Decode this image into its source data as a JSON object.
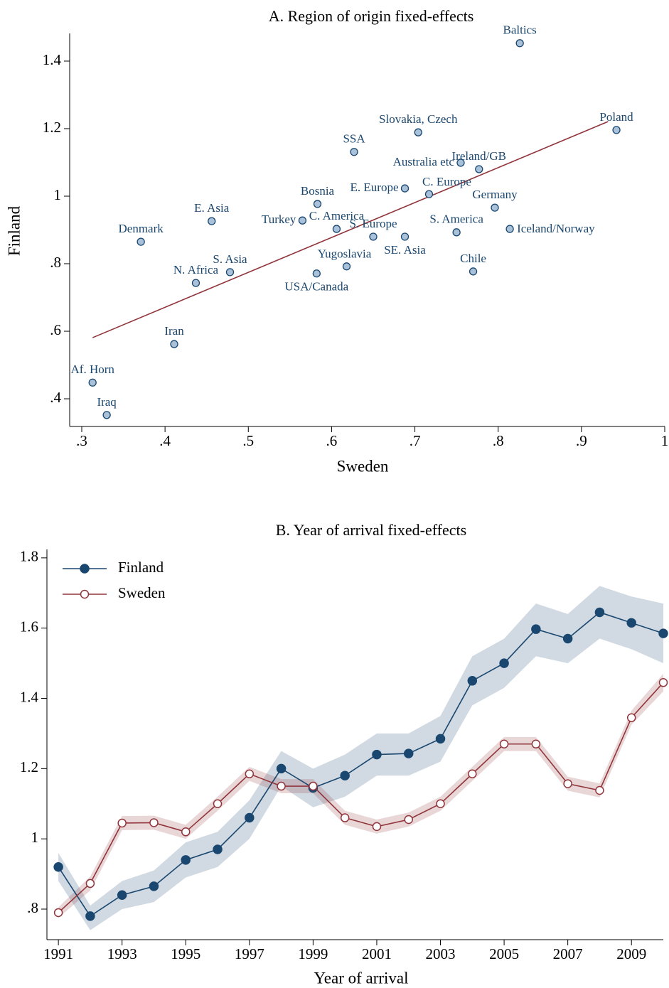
{
  "chart_data": [
    {
      "type": "scatter",
      "title": "A. Region of origin fixed-effects",
      "x_label": "Sweden",
      "y_label": "Finland",
      "point_color": "#a9c1d9",
      "edge_color": "#1a476f",
      "label_color": "#1a476f",
      "labels": [
        "Baltics",
        "Poland",
        "Slovakia, Czech",
        "SSA",
        "Australia etc",
        "Ireland/GB",
        "E. Europe",
        "C. Europe",
        "Bosnia",
        "Germany",
        "E. Asia",
        "Turkey",
        "C. America",
        "Iceland/Norway",
        "S. Europe",
        "SE. Asia",
        "S. America",
        "Denmark",
        "Yugoslavia",
        "Chile",
        "S. Asia",
        "USA/Canada",
        "N. Africa",
        "Iran",
        "Af. Horn",
        "Iraq"
      ],
      "x": [
        0.826,
        0.942,
        0.704,
        0.627,
        0.755,
        0.777,
        0.688,
        0.717,
        0.583,
        0.796,
        0.456,
        0.565,
        0.606,
        0.814,
        0.65,
        0.688,
        0.75,
        0.371,
        0.618,
        0.77,
        0.478,
        0.582,
        0.437,
        0.411,
        0.313,
        0.33
      ],
      "y": [
        1.453,
        1.196,
        1.189,
        1.131,
        1.099,
        1.08,
        1.023,
        1.006,
        0.977,
        0.966,
        0.926,
        0.928,
        0.903,
        0.903,
        0.88,
        0.88,
        0.893,
        0.865,
        0.792,
        0.777,
        0.775,
        0.771,
        0.743,
        0.562,
        0.448,
        0.352
      ],
      "fit_line": {
        "x": [
          0.313,
          0.932
        ],
        "y": [
          0.581,
          1.221
        ],
        "color": "#90353b"
      },
      "xlim": [
        0.2855,
        1.0
      ],
      "ylim": [
        0.318,
        1.482
      ],
      "xticks": [
        {
          "value": 0.3,
          "label": ".3"
        },
        {
          "value": 0.4,
          "label": ".4"
        },
        {
          "value": 0.5,
          "label": ".5"
        },
        {
          "value": 0.6,
          "label": ".6"
        },
        {
          "value": 0.7,
          "label": ".7"
        },
        {
          "value": 0.8,
          "label": ".8"
        },
        {
          "value": 0.9,
          "label": ".9"
        },
        1
      ],
      "yticks": [
        {
          "value": 0.4,
          "label": ".4"
        },
        {
          "value": 0.6,
          "label": ".6"
        },
        {
          "value": 0.8,
          "label": ".8"
        },
        1,
        1.2,
        1.4
      ]
    },
    {
      "type": "line",
      "title": "B. Year of arrival fixed-effects",
      "x_label": "Year of arrival",
      "legend": "top-left",
      "x": [
        1991,
        1992,
        1993,
        1994,
        1995,
        1996,
        1997,
        1998,
        1999,
        2000,
        2001,
        2002,
        2003,
        2004,
        2005,
        2006,
        2007,
        2008,
        2009,
        2010
      ],
      "series": [
        {
          "name": "Finland",
          "color": "#1a476f",
          "marker": "filled",
          "values": [
            0.92,
            0.78,
            0.84,
            0.865,
            0.94,
            0.97,
            1.06,
            1.2,
            1.145,
            1.18,
            1.24,
            1.243,
            1.285,
            1.45,
            1.5,
            1.597,
            1.57,
            1.645,
            1.615,
            1.585
          ],
          "lower": [
            0.88,
            0.74,
            0.8,
            0.82,
            0.89,
            0.92,
            1.0,
            1.15,
            1.09,
            1.12,
            1.18,
            1.18,
            1.22,
            1.38,
            1.43,
            1.52,
            1.5,
            1.57,
            1.54,
            1.5
          ],
          "upper": [
            0.96,
            0.81,
            0.88,
            0.91,
            0.99,
            1.02,
            1.11,
            1.25,
            1.2,
            1.24,
            1.3,
            1.3,
            1.35,
            1.52,
            1.57,
            1.67,
            1.64,
            1.72,
            1.69,
            1.67
          ]
        },
        {
          "name": "Sweden",
          "color": "#90353b",
          "marker": "hollow",
          "values": [
            0.79,
            0.873,
            1.045,
            1.046,
            1.02,
            1.1,
            1.185,
            1.15,
            1.15,
            1.06,
            1.035,
            1.055,
            1.1,
            1.185,
            1.27,
            1.27,
            1.157,
            1.138,
            1.345,
            1.445
          ],
          "lower": [
            0.775,
            0.853,
            1.025,
            1.026,
            1.0,
            1.08,
            1.165,
            1.13,
            1.13,
            1.04,
            1.015,
            1.035,
            1.08,
            1.165,
            1.25,
            1.25,
            1.137,
            1.118,
            1.325,
            1.42
          ],
          "upper": [
            0.805,
            0.893,
            1.065,
            1.066,
            1.04,
            1.12,
            1.205,
            1.17,
            1.17,
            1.08,
            1.055,
            1.075,
            1.12,
            1.205,
            1.29,
            1.29,
            1.177,
            1.158,
            1.365,
            1.47
          ]
        }
      ],
      "xlim": [
        1990.64,
        2010
      ],
      "ylim": [
        0.713,
        1.824
      ],
      "xticks": [
        1991,
        1993,
        1995,
        1997,
        1999,
        2001,
        2003,
        2005,
        2007,
        2009
      ],
      "yticks": [
        {
          "value": 0.8,
          "label": ".8"
        },
        1,
        1.2,
        1.4,
        1.6,
        1.8
      ]
    }
  ]
}
